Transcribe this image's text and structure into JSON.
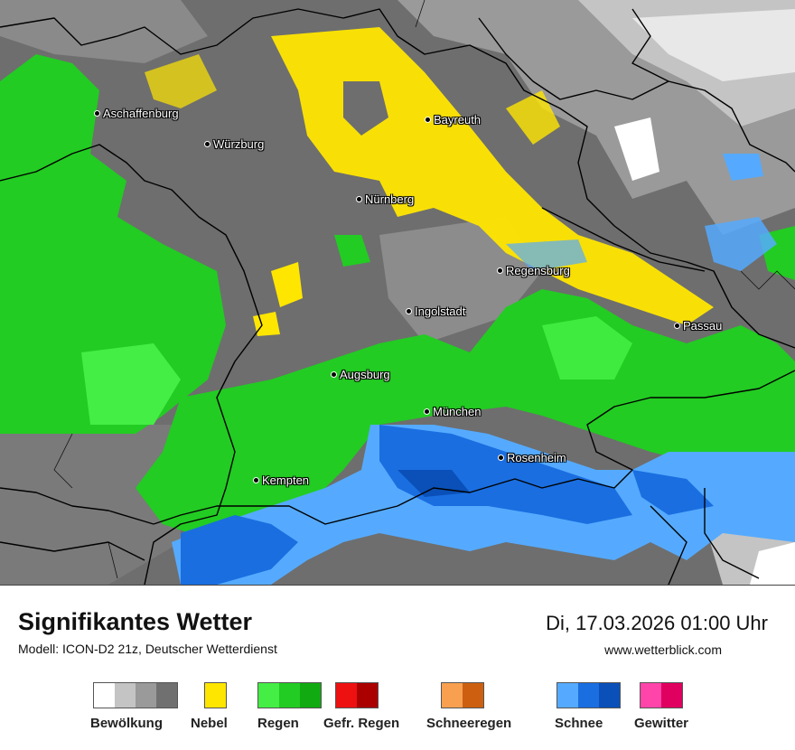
{
  "map": {
    "cities": [
      {
        "name": "Aschaffenburg"
      },
      {
        "name": "Würzburg"
      },
      {
        "name": "Bayreuth"
      },
      {
        "name": "Nürnberg"
      },
      {
        "name": "Regensburg"
      },
      {
        "name": "Ingolstadt"
      },
      {
        "name": "Passau"
      },
      {
        "name": "Augsburg"
      },
      {
        "name": "München"
      },
      {
        "name": "Rosenheim"
      },
      {
        "name": "Kempten"
      }
    ]
  },
  "header": {
    "title": "Signifikantes Wetter",
    "model": "Modell: ICON-D2 21z, Deutscher Wetterdienst",
    "datetime": "Di, 17.03.2026 01:00 Uhr",
    "website": "www.wetterblick.com"
  },
  "legend": [
    {
      "label": "Bewölkung",
      "colors": [
        "#ffffff",
        "#c4c4c4",
        "#9a9a9a",
        "#707070"
      ]
    },
    {
      "label": "Nebel",
      "colors": [
        "#ffe600"
      ]
    },
    {
      "label": "Regen",
      "colors": [
        "#44ee44",
        "#22cc22",
        "#11aa11"
      ]
    },
    {
      "label": "Gefr. Regen",
      "colors": [
        "#ee1111",
        "#aa0000"
      ]
    },
    {
      "label": "Schneeregen",
      "colors": [
        "#f8a050",
        "#cc6010"
      ]
    },
    {
      "label": "Schnee",
      "colors": [
        "#55aaff",
        "#1a6ee0",
        "#0a50b8"
      ]
    },
    {
      "label": "Gewitter",
      "colors": [
        "#ff44aa",
        "#e0005f"
      ]
    }
  ]
}
